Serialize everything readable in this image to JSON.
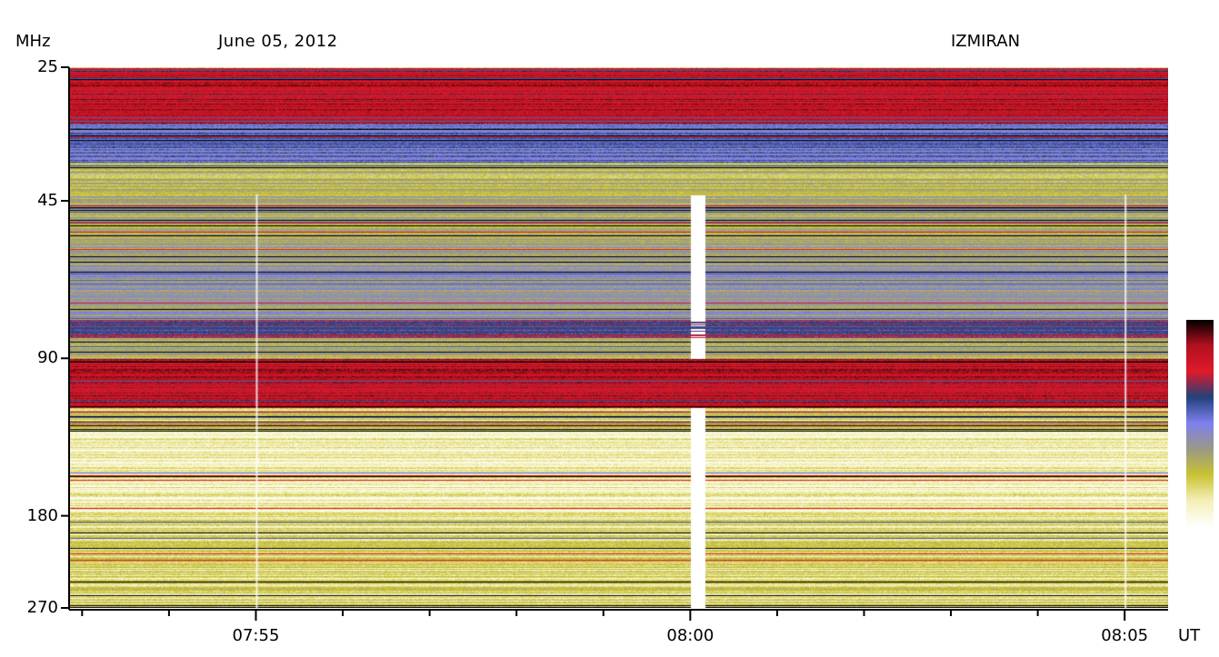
{
  "header": {
    "unit_label": "MHz",
    "date": "June 05, 2012",
    "observatory": "IZMIRAN",
    "time_unit": "UT"
  },
  "colors": {
    "colormap": [
      "#ffffff",
      "#f4f0b6",
      "#c9c233",
      "#9a9a86",
      "#7f80ef",
      "#23417a",
      "#e11a2b",
      "#b3111f",
      "#000000"
    ],
    "red": "#e11a2b",
    "blue": "#7f80ef",
    "olive": "#c9c233"
  },
  "chart_data": {
    "type": "heatmap",
    "title": "June 05, 2012",
    "xlabel": "UT",
    "ylabel": "MHz",
    "y_scale": "log",
    "y_range": [
      25,
      270
    ],
    "y_ticks": [
      {
        "value": 25,
        "label": "25"
      },
      {
        "value": 45,
        "label": "45"
      },
      {
        "value": 90,
        "label": "90"
      },
      {
        "value": 180,
        "label": "180"
      },
      {
        "value": 270,
        "label": "270"
      }
    ],
    "x_range": [
      "07:52:51",
      "08:05:30"
    ],
    "x_major_ticks": [
      {
        "value": "07:55",
        "label": "07:55"
      },
      {
        "value": "08:00",
        "label": "08:00"
      },
      {
        "value": "08:05",
        "label": "08:05"
      }
    ],
    "x_minor_ticks": [
      "07:53:00",
      "07:54:00",
      "07:56:00",
      "07:57:00",
      "07:58:00",
      "07:59:00",
      "08:01:00",
      "08:02:00",
      "08:03:00",
      "08:04:00"
    ],
    "legend": "colorbar right",
    "colorbar_colors": [
      "#ffffff",
      "#f4f0b6",
      "#c9c233",
      "#9a9a86",
      "#7f80ef",
      "#23417a",
      "#e11a2b",
      "#b3111f",
      "#000000"
    ],
    "frequency_bands": [
      {
        "from_mhz": 25,
        "to_mhz": 32,
        "level": 6.5
      },
      {
        "from_mhz": 32,
        "to_mhz": 38,
        "level": 4.2
      },
      {
        "from_mhz": 38,
        "to_mhz": 44,
        "level": 2.2
      },
      {
        "from_mhz": 44,
        "to_mhz": 60,
        "level": 2.8
      },
      {
        "from_mhz": 60,
        "to_mhz": 76,
        "level": 3.2
      },
      {
        "from_mhz": 76,
        "to_mhz": 82,
        "level": 5.2
      },
      {
        "from_mhz": 82,
        "to_mhz": 90,
        "level": 2.6
      },
      {
        "from_mhz": 90,
        "to_mhz": 112,
        "level": 6.6
      },
      {
        "from_mhz": 112,
        "to_mhz": 124,
        "level": 1.8
      },
      {
        "from_mhz": 124,
        "to_mhz": 178,
        "level": 0.9
      },
      {
        "from_mhz": 178,
        "to_mhz": 270,
        "level": 1.5
      }
    ],
    "events": [
      {
        "time": "08:00:05",
        "description": "data gap (white vertical stripe)"
      },
      {
        "time": "07:55:00",
        "description": "short vertical interference line"
      },
      {
        "time": "08:05:00",
        "description": "short vertical interference line"
      }
    ]
  }
}
